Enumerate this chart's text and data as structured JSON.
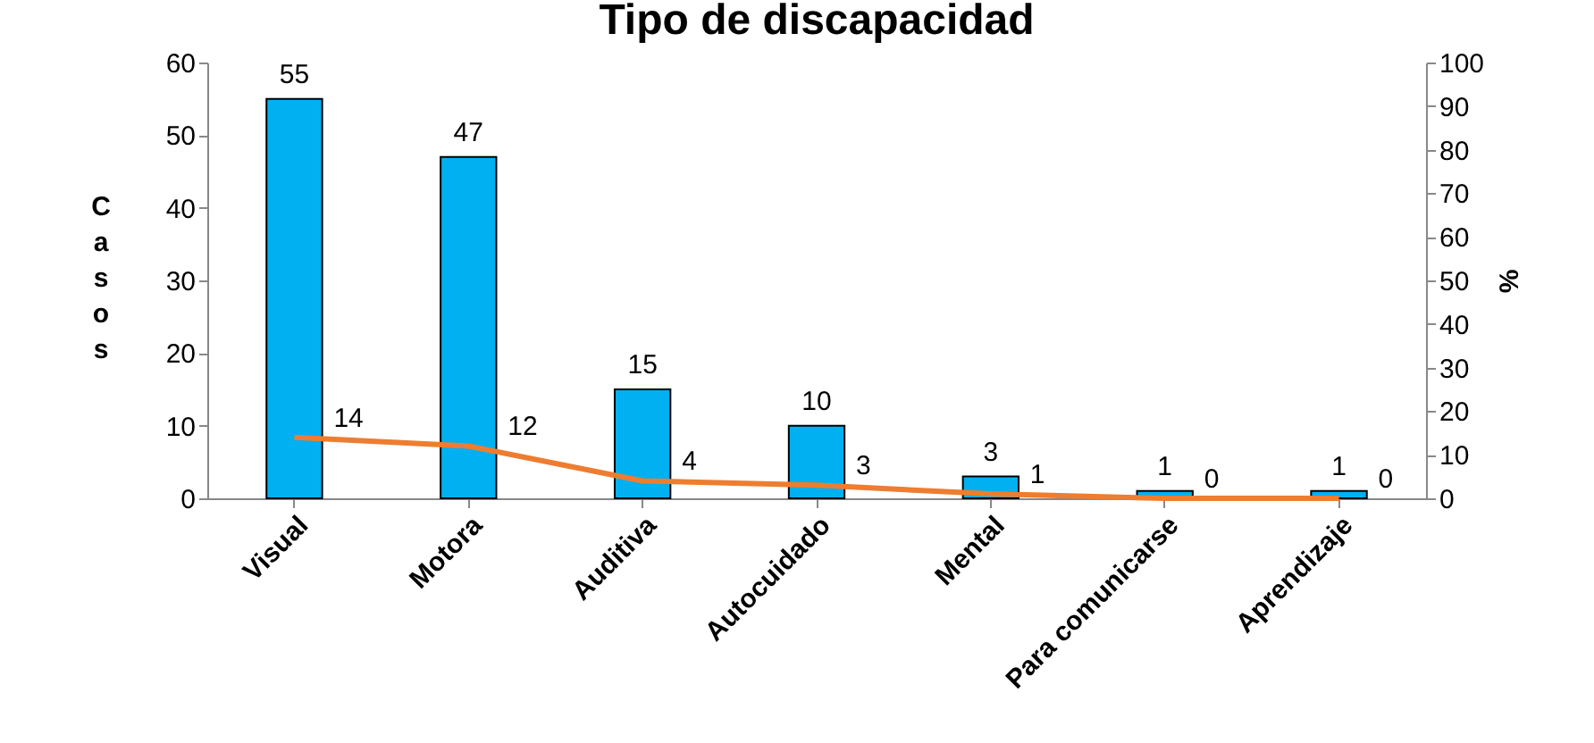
{
  "chart_data": {
    "type": "bar",
    "title": "Tipo de discapacidad",
    "ylabel": "Casos",
    "y2label": "%",
    "categories": [
      "Visual",
      "Motora",
      "Auditiva",
      "Autocuidado",
      "Mental",
      "Para comunicarse",
      "Aprendizaje"
    ],
    "series": [
      {
        "type": "bar",
        "color": "#00b0f0",
        "values": [
          55,
          47,
          15,
          10,
          3,
          1,
          1
        ]
      },
      {
        "type": "line",
        "axis": "y2",
        "color": "#ed7d31",
        "values": [
          14,
          12,
          4,
          3,
          1,
          0,
          0
        ]
      }
    ],
    "ylim": [
      0,
      60
    ],
    "yticks": [
      0,
      10,
      20,
      30,
      40,
      50,
      60
    ],
    "y2lim": [
      0,
      100
    ],
    "y2ticks": [
      0,
      10,
      20,
      30,
      40,
      50,
      60,
      70,
      80,
      90,
      100
    ],
    "data_labels": true
  }
}
